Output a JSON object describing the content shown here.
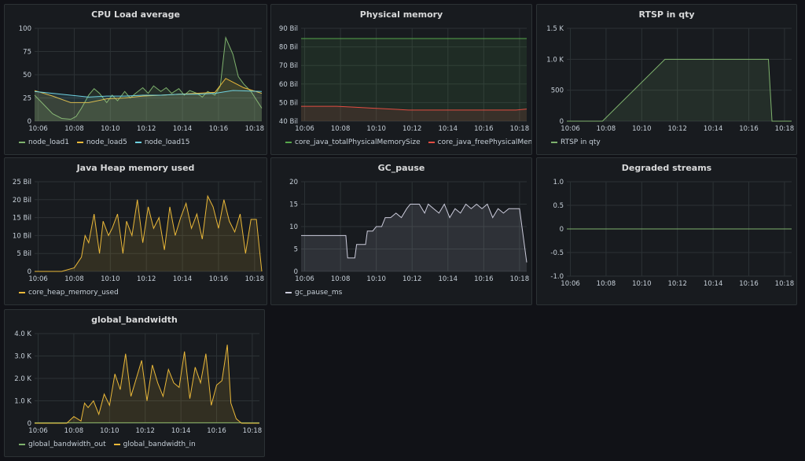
{
  "panels": [
    {
      "id": "cpu",
      "title": "CPU Load average",
      "box": [
        5,
        5,
        335,
        192
      ],
      "chart_data": {
        "type": "line",
        "ylim": [
          0,
          100
        ],
        "yticks": [
          0,
          25,
          50,
          75,
          100
        ],
        "ytick_labels": [
          "0",
          "25",
          "50",
          "75",
          "100"
        ],
        "xlim": [
          0,
          12.6
        ],
        "xticks": [
          0.2,
          2.2,
          4.2,
          6.2,
          8.2,
          10.2,
          12.2
        ],
        "xtick_labels": [
          "10:06",
          "10:08",
          "10:10",
          "10:12",
          "10:14",
          "10:16",
          "10:18"
        ],
        "fill": true,
        "series": [
          {
            "name": "node_load1",
            "color": "#7eb26d",
            "x": [
              0,
              0.5,
              1,
              1.5,
              2,
              2.3,
              2.6,
              3,
              3.3,
              3.6,
              4,
              4.3,
              4.6,
              5,
              5.3,
              5.6,
              6,
              6.3,
              6.6,
              7,
              7.3,
              7.6,
              8,
              8.3,
              8.6,
              9,
              9.3,
              9.6,
              10,
              10.3,
              10.6,
              11,
              11.3,
              11.6,
              12,
              12.6
            ],
            "y": [
              28,
              18,
              8,
              3,
              2,
              5,
              14,
              28,
              35,
              30,
              20,
              28,
              22,
              32,
              25,
              30,
              36,
              30,
              38,
              32,
              36,
              30,
              35,
              28,
              33,
              30,
              26,
              32,
              28,
              38,
              90,
              72,
              48,
              40,
              32,
              14
            ]
          },
          {
            "name": "node_load5",
            "color": "#eab839",
            "x": [
              0,
              1,
              2,
              3,
              4,
              5,
              6,
              7,
              8,
              9,
              10,
              10.6,
              11,
              11.6,
              12.6
            ],
            "y": [
              33,
              27,
              20,
              20,
              24,
              25,
              27,
              28,
              29,
              30,
              31,
              46,
              42,
              36,
              30
            ]
          },
          {
            "name": "node_load15",
            "color": "#6ed0e0",
            "x": [
              0,
              1,
              2,
              3,
              4,
              5,
              6,
              7,
              8,
              9,
              10,
              11,
              12.6
            ],
            "y": [
              32,
              30,
              28,
              26,
              27,
              27,
              28,
              28,
              29,
              29,
              30,
              33,
              32
            ]
          }
        ]
      }
    },
    {
      "id": "physmem",
      "title": "Physical memory",
      "box": [
        344,
        5,
        333,
        192
      ],
      "chart_data": {
        "type": "area",
        "ylim": [
          40,
          90
        ],
        "yticks": [
          40,
          50,
          60,
          70,
          80,
          90
        ],
        "ytick_labels": [
          "40 Bil",
          "50 Bil",
          "60 Bil",
          "70 Bil",
          "80 Bil",
          "90 Bil"
        ],
        "xlim": [
          0,
          12.6
        ],
        "xticks": [
          0.2,
          2.2,
          4.2,
          6.2,
          8.2,
          10.2,
          12.2
        ],
        "xtick_labels": [
          "10:06",
          "10:08",
          "10:10",
          "10:12",
          "10:14",
          "10:16",
          "10:18"
        ],
        "fill": true,
        "series": [
          {
            "name": "core_java_totalPhysicalMemorySize",
            "color": "#56a64b",
            "x": [
              0,
              12.6
            ],
            "y": [
              84.5,
              84.5
            ]
          },
          {
            "name": "core_java_freePhysicalMemorySize",
            "color": "#e24d42",
            "x": [
              0,
              2,
              3,
              4,
              5,
              6,
              8,
              10,
              12,
              12.6
            ],
            "y": [
              48,
              48,
              47.5,
              47,
              46.5,
              46,
              46,
              46,
              46,
              46.5
            ]
          }
        ]
      }
    },
    {
      "id": "rtsp",
      "title": "RTSP in qty",
      "box": [
        682,
        5,
        332,
        192
      ],
      "chart_data": {
        "type": "area",
        "ylim": [
          0,
          1500
        ],
        "yticks": [
          0,
          500,
          1000,
          1500
        ],
        "ytick_labels": [
          "0",
          "500",
          "1.0 K",
          "1.5 K"
        ],
        "xlim": [
          0,
          12.6
        ],
        "xticks": [
          0.2,
          2.2,
          4.2,
          6.2,
          8.2,
          10.2,
          12.2
        ],
        "xtick_labels": [
          "10:06",
          "10:08",
          "10:10",
          "10:12",
          "10:14",
          "10:16",
          "10:18"
        ],
        "fill": true,
        "series": [
          {
            "name": "RTSP in qty",
            "color": "#7eb26d",
            "x": [
              0,
              2.0,
              5.5,
              11.3,
              11.5,
              12.6
            ],
            "y": [
              0,
              0,
              1000,
              1000,
              0,
              0
            ]
          }
        ]
      }
    },
    {
      "id": "heap",
      "title": "Java Heap memory used",
      "box": [
        5,
        200,
        335,
        188
      ],
      "chart_data": {
        "type": "line",
        "ylim": [
          0,
          25
        ],
        "yticks": [
          0,
          5,
          10,
          15,
          20,
          25
        ],
        "ytick_labels": [
          "0",
          "5 Bil",
          "10 Bil",
          "15 Bil",
          "20 Bil",
          "25 Bil"
        ],
        "xlim": [
          0,
          12.6
        ],
        "xticks": [
          0.2,
          2.2,
          4.2,
          6.2,
          8.2,
          10.2,
          12.2
        ],
        "xtick_labels": [
          "10:06",
          "10:08",
          "10:10",
          "10:12",
          "10:14",
          "10:16",
          "10:18"
        ],
        "fill": true,
        "series": [
          {
            "name": "core_heap_memory_used",
            "color": "#eab839",
            "x": [
              0,
              1.5,
              2.2,
              2.6,
              2.8,
              3.0,
              3.3,
              3.6,
              3.8,
              4.1,
              4.3,
              4.6,
              4.9,
              5.1,
              5.4,
              5.7,
              6.0,
              6.3,
              6.6,
              6.9,
              7.2,
              7.5,
              7.8,
              8.1,
              8.4,
              8.7,
              9.0,
              9.3,
              9.6,
              9.9,
              10.2,
              10.5,
              10.8,
              11.1,
              11.4,
              11.7,
              12.0,
              12.3,
              12.6
            ],
            "y": [
              0,
              0,
              1,
              4,
              10,
              8,
              16,
              5,
              14,
              10,
              12,
              16,
              5,
              14,
              10,
              20,
              8,
              18,
              12,
              15,
              6,
              18,
              10,
              15,
              19,
              12,
              16,
              9,
              21,
              18,
              12,
              20,
              14,
              11,
              16,
              5,
              14.5,
              14.5,
              0
            ]
          }
        ]
      }
    },
    {
      "id": "gc",
      "title": "GC_pause",
      "box": [
        344,
        200,
        333,
        188
      ],
      "chart_data": {
        "type": "line",
        "ylim": [
          0,
          20
        ],
        "yticks": [
          0,
          5,
          10,
          15,
          20
        ],
        "ytick_labels": [
          "0",
          "5",
          "10",
          "15",
          "20"
        ],
        "xlim": [
          0,
          12.6
        ],
        "xticks": [
          0.2,
          2.2,
          4.2,
          6.2,
          8.2,
          10.2,
          12.2
        ],
        "xtick_labels": [
          "10:06",
          "10:08",
          "10:10",
          "10:12",
          "10:14",
          "10:16",
          "10:18"
        ],
        "fill": true,
        "series": [
          {
            "name": "gc_pause_ms",
            "color": "#ccccdc",
            "x": [
              0,
              2.5,
              2.6,
              3.0,
              3.1,
              3.6,
              3.7,
              4.0,
              4.2,
              4.5,
              4.7,
              5.0,
              5.3,
              5.6,
              5.9,
              6.1,
              6.3,
              6.6,
              6.9,
              7.1,
              7.4,
              7.7,
              8.0,
              8.3,
              8.6,
              8.9,
              9.2,
              9.5,
              9.8,
              10.1,
              10.4,
              10.7,
              11.0,
              11.3,
              11.6,
              12.0,
              12.2,
              12.6
            ],
            "y": [
              8,
              8,
              3,
              3,
              6,
              6,
              9,
              9,
              10,
              10,
              12,
              12,
              13,
              12,
              14,
              15,
              15,
              15,
              13,
              15,
              14,
              13,
              15,
              12,
              14,
              13,
              15,
              14,
              15,
              14,
              15,
              12,
              14,
              13,
              14,
              14,
              14,
              2
            ]
          }
        ]
      }
    },
    {
      "id": "degraded",
      "title": "Degraded streams",
      "box": [
        682,
        200,
        332,
        188
      ],
      "chart_data": {
        "type": "line",
        "ylim": [
          -1,
          1
        ],
        "yticks": [
          -1,
          -0.5,
          0,
          0.5,
          1
        ],
        "ytick_labels": [
          "-1.0",
          "-0.5",
          "0",
          "0.5",
          "1.0"
        ],
        "xlim": [
          0,
          12.6
        ],
        "xticks": [
          0.2,
          2.2,
          4.2,
          6.2,
          8.2,
          10.2,
          12.2
        ],
        "xtick_labels": [
          "10:06",
          "10:08",
          "10:10",
          "10:12",
          "10:14",
          "10:16",
          "10:18"
        ],
        "fill": false,
        "series": [
          {
            "name": "",
            "color": "#7eb26d",
            "x": [
              0,
              12.6
            ],
            "y": [
              0,
              0
            ]
          }
        ]
      }
    },
    {
      "id": "bandwidth",
      "title": "global_bandwidth",
      "box": [
        5,
        393,
        332,
        188
      ],
      "chart_data": {
        "type": "line",
        "ylim": [
          0,
          4000
        ],
        "yticks": [
          0,
          1000,
          2000,
          3000,
          4000
        ],
        "ytick_labels": [
          "0",
          "1.0 K",
          "2.0 K",
          "3.0 K",
          "4.0 K"
        ],
        "xlim": [
          0,
          12.6
        ],
        "xticks": [
          0.2,
          2.2,
          4.2,
          6.2,
          8.2,
          10.2,
          12.2
        ],
        "xtick_labels": [
          "10:06",
          "10:08",
          "10:10",
          "10:12",
          "10:14",
          "10:16",
          "10:18"
        ],
        "fill": true,
        "series": [
          {
            "name": "global_bandwidth_out",
            "color": "#7eb26d",
            "x": [
              0,
              12.6
            ],
            "y": [
              20,
              20
            ]
          },
          {
            "name": "global_bandwidth_in",
            "color": "#eab839",
            "x": [
              0,
              1.8,
              2.2,
              2.6,
              2.8,
              3.0,
              3.3,
              3.6,
              3.9,
              4.2,
              4.5,
              4.8,
              5.1,
              5.4,
              5.7,
              6.0,
              6.3,
              6.6,
              6.9,
              7.2,
              7.5,
              7.8,
              8.1,
              8.4,
              8.7,
              9.0,
              9.3,
              9.6,
              9.9,
              10.2,
              10.5,
              10.8,
              11.0,
              11.3,
              11.6,
              12.6
            ],
            "y": [
              0,
              0,
              300,
              100,
              900,
              700,
              1000,
              400,
              1300,
              800,
              2200,
              1500,
              3100,
              1200,
              2000,
              2800,
              1000,
              2600,
              1800,
              1200,
              2400,
              1800,
              1600,
              3200,
              1100,
              2500,
              1800,
              3100,
              800,
              1700,
              1900,
              3500,
              900,
              200,
              0,
              0
            ]
          }
        ]
      }
    }
  ]
}
